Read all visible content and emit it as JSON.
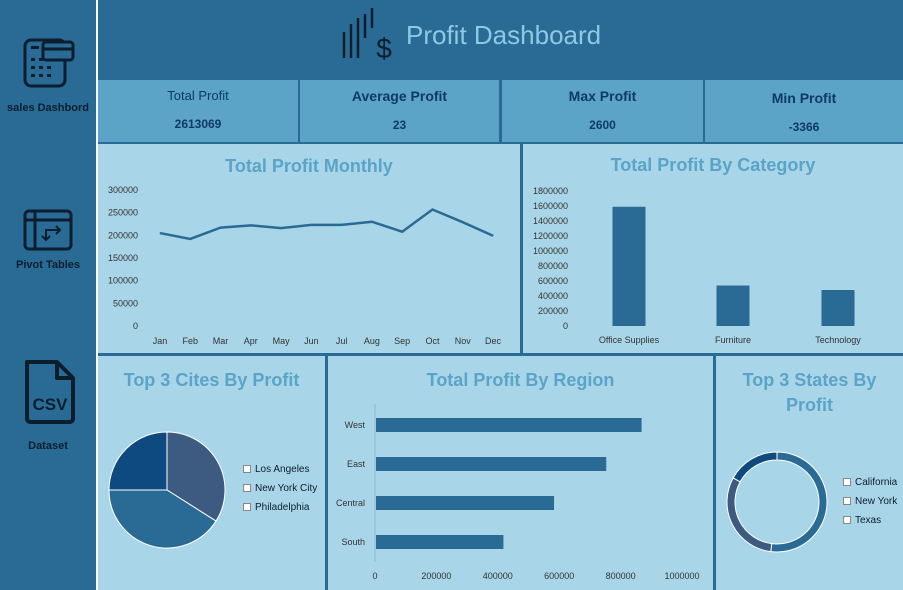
{
  "sidebar": {
    "items": [
      {
        "label": "sales Dashbord",
        "icon": "calculator-card-icon"
      },
      {
        "label": "Pivot Tables",
        "icon": "pivot-table-icon"
      },
      {
        "label": "Dataset",
        "icon": "csv-file-icon"
      }
    ]
  },
  "header": {
    "title": "Profit Dashboard",
    "icon": "profit-bars-dollar-icon"
  },
  "kpis": [
    {
      "label": "Total Profit",
      "value": "2613069"
    },
    {
      "label": "Average Profit",
      "value": "23"
    },
    {
      "label": "Max Profit",
      "value": "2600"
    },
    {
      "label": "Min Profit",
      "value": "-3366"
    }
  ],
  "colors": {
    "dark": "#2a6b96",
    "panel": "#a8d6e8",
    "title": "#5ba3c7",
    "kpi_text": "#0d3a66"
  },
  "chart_data": [
    {
      "id": "monthly",
      "type": "line",
      "title": "Total Profit Monthly",
      "categories": [
        "Jan",
        "Feb",
        "Mar",
        "Apr",
        "May",
        "Jun",
        "Jul",
        "Aug",
        "Sep",
        "Oct",
        "Nov",
        "Dec"
      ],
      "values": [
        205000,
        192000,
        217000,
        222000,
        216000,
        223000,
        223000,
        230000,
        208000,
        257000,
        229000,
        199000
      ],
      "ylim": [
        0,
        300000
      ],
      "yticks": [
        "300000",
        "250000",
        "200000",
        "150000",
        "100000",
        "50000",
        "0"
      ]
    },
    {
      "id": "category",
      "type": "bar",
      "title": "Total Profit By Category",
      "categories": [
        "Office Supplies",
        "Furniture",
        "Technology"
      ],
      "values": [
        1590000,
        540000,
        480000
      ],
      "ylim": [
        0,
        1800000
      ],
      "yticks": [
        "1800000",
        "1600000",
        "1400000",
        "1200000",
        "1000000",
        "800000",
        "600000",
        "400000",
        "200000",
        "0"
      ]
    },
    {
      "id": "cities",
      "type": "pie",
      "title": "Top 3 Cites By Profit",
      "categories": [
        "Los Angeles",
        "New York City",
        "Philadelphia"
      ],
      "values": [
        34,
        41,
        25
      ],
      "colors": [
        "#3d5a80",
        "#2a6b96",
        "#0e4a80"
      ]
    },
    {
      "id": "region",
      "type": "bar",
      "orientation": "horizontal",
      "title": "Total Profit By Region",
      "categories": [
        "West",
        "East",
        "Central",
        "South"
      ],
      "values": [
        865000,
        750000,
        580000,
        415000
      ],
      "xlim": [
        0,
        1000000
      ],
      "xticks": [
        "0",
        "200000",
        "400000",
        "600000",
        "800000",
        "1000000"
      ]
    },
    {
      "id": "states",
      "type": "donut",
      "title": "Top 3 States By Profit",
      "categories": [
        "California",
        "New York",
        "Texas"
      ],
      "values": [
        52,
        31,
        17
      ],
      "colors": [
        "#2a6b96",
        "#3d5a80",
        "#0e4a80"
      ]
    }
  ]
}
